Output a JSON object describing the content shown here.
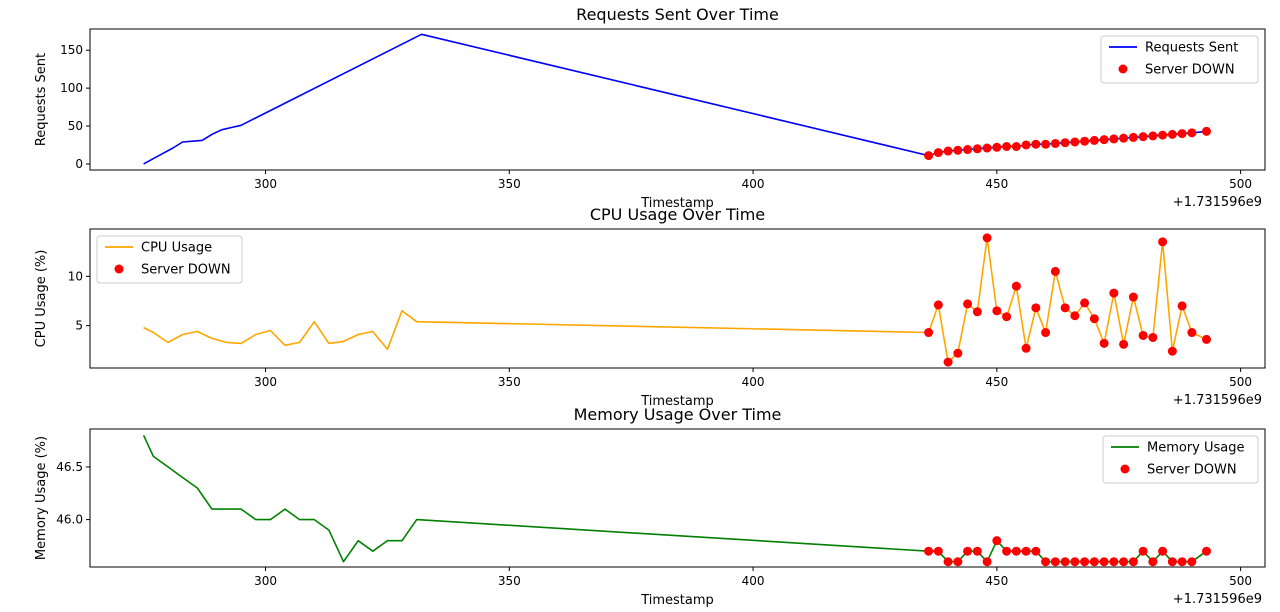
{
  "chart_data": [
    {
      "type": "line",
      "title": "Requests Sent Over Time",
      "xlabel": "Timestamp",
      "ylabel": "Requests Sent",
      "x_offset_label": "+1.731596e9",
      "xlim": [
        264,
        505
      ],
      "ylim": [
        -8,
        178
      ],
      "x_ticks": [
        300,
        350,
        400,
        450,
        500
      ],
      "y_ticks": [
        0,
        50,
        100,
        150
      ],
      "legend_position": "top-right",
      "line_color": "#0000ff",
      "marker_color": "#ff0000",
      "line_series": {
        "name": "Requests Sent",
        "x": [
          275,
          277,
          279,
          281,
          283,
          285,
          287,
          289,
          291,
          293,
          295,
          332,
          436,
          438,
          440,
          442,
          444,
          446,
          448,
          450,
          452,
          454,
          456,
          458,
          460,
          462,
          464,
          466,
          468,
          470,
          472,
          474,
          476,
          478,
          480,
          482,
          484,
          486,
          488,
          490,
          493
        ],
        "y": [
          0,
          7,
          14,
          21,
          29,
          30,
          31,
          39,
          45,
          48,
          51,
          171,
          11,
          15,
          17,
          18,
          19,
          20,
          21,
          22,
          23,
          23,
          25,
          26,
          26,
          27,
          28,
          29,
          30,
          31,
          32,
          33,
          34,
          35,
          36,
          37,
          38,
          39,
          40,
          41,
          43
        ]
      },
      "marker_series": {
        "name": "Server DOWN",
        "x": [
          436,
          438,
          440,
          442,
          444,
          446,
          448,
          450,
          452,
          454,
          456,
          458,
          460,
          462,
          464,
          466,
          468,
          470,
          472,
          474,
          476,
          478,
          480,
          482,
          484,
          486,
          488,
          490,
          493
        ],
        "y": [
          11,
          15,
          17,
          18,
          19,
          20,
          21,
          22,
          23,
          23,
          25,
          26,
          26,
          27,
          28,
          29,
          30,
          31,
          32,
          33,
          34,
          35,
          36,
          37,
          38,
          39,
          40,
          41,
          43
        ]
      }
    },
    {
      "type": "line",
      "title": "CPU Usage Over Time",
      "xlabel": "Timestamp",
      "ylabel": "CPU Usage (%)",
      "x_offset_label": "+1.731596e9",
      "xlim": [
        264,
        505
      ],
      "ylim": [
        0.7,
        14.8
      ],
      "x_ticks": [
        300,
        350,
        400,
        450,
        500
      ],
      "y_ticks": [
        5,
        10
      ],
      "legend_position": "top-left",
      "line_color": "#ffa500",
      "marker_color": "#ff0000",
      "line_series": {
        "name": "CPU Usage",
        "x": [
          275,
          277,
          280,
          283,
          286,
          289,
          292,
          295,
          298,
          301,
          304,
          307,
          310,
          313,
          316,
          319,
          322,
          325,
          328,
          331,
          436,
          438,
          440,
          442,
          444,
          446,
          448,
          450,
          452,
          454,
          456,
          458,
          460,
          462,
          464,
          466,
          468,
          470,
          472,
          474,
          476,
          478,
          480,
          482,
          484,
          486,
          488,
          490,
          493
        ],
        "y": [
          4.8,
          4.3,
          3.3,
          4.1,
          4.4,
          3.7,
          3.3,
          3.2,
          4.1,
          4.5,
          3.0,
          3.3,
          5.4,
          3.2,
          3.4,
          4.1,
          4.4,
          2.6,
          6.5,
          5.4,
          4.3,
          7.1,
          1.3,
          2.2,
          7.2,
          6.4,
          13.9,
          6.5,
          5.9,
          9.0,
          2.7,
          6.8,
          4.3,
          10.5,
          6.8,
          6.0,
          7.3,
          5.7,
          3.2,
          8.3,
          3.1,
          7.9,
          4.0,
          3.8,
          13.5,
          2.4,
          7.0,
          4.3,
          3.6
        ]
      },
      "marker_series": {
        "name": "Server DOWN",
        "x": [
          436,
          438,
          440,
          442,
          444,
          446,
          448,
          450,
          452,
          454,
          456,
          458,
          460,
          462,
          464,
          466,
          468,
          470,
          472,
          474,
          476,
          478,
          480,
          482,
          484,
          486,
          488,
          490,
          493
        ],
        "y": [
          4.3,
          7.1,
          1.3,
          2.2,
          7.2,
          6.4,
          13.9,
          6.5,
          5.9,
          9.0,
          2.7,
          6.8,
          4.3,
          10.5,
          6.8,
          6.0,
          7.3,
          5.7,
          3.2,
          8.3,
          3.1,
          7.9,
          4.0,
          3.8,
          13.5,
          2.4,
          7.0,
          4.3,
          3.6
        ]
      }
    },
    {
      "type": "line",
      "title": "Memory Usage Over Time",
      "xlabel": "Timestamp",
      "ylabel": "Memory Usage (%)",
      "x_offset_label": "+1.731596e9",
      "xlim": [
        264,
        505
      ],
      "ylim": [
        45.55,
        46.86
      ],
      "x_ticks": [
        300,
        350,
        400,
        450,
        500
      ],
      "y_ticks": [
        46.0,
        46.5
      ],
      "y_tick_labels": [
        "46.0",
        "46.5"
      ],
      "legend_position": "top-right",
      "line_color": "#008000",
      "marker_color": "#ff0000",
      "line_series": {
        "name": "Memory Usage",
        "x": [
          275,
          277,
          280,
          283,
          286,
          289,
          292,
          295,
          298,
          301,
          304,
          307,
          310,
          313,
          316,
          319,
          322,
          325,
          328,
          331,
          436,
          438,
          440,
          442,
          444,
          446,
          448,
          450,
          452,
          454,
          456,
          458,
          460,
          462,
          464,
          466,
          468,
          470,
          472,
          474,
          476,
          478,
          480,
          482,
          484,
          486,
          488,
          490,
          493
        ],
        "y": [
          46.8,
          46.6,
          46.5,
          46.4,
          46.3,
          46.1,
          46.1,
          46.1,
          46.0,
          46.0,
          46.1,
          46.0,
          46.0,
          45.9,
          45.6,
          45.8,
          45.7,
          45.8,
          45.8,
          46.0,
          45.7,
          45.7,
          45.6,
          45.6,
          45.7,
          45.7,
          45.6,
          45.8,
          45.7,
          45.7,
          45.7,
          45.7,
          45.6,
          45.6,
          45.6,
          45.6,
          45.6,
          45.6,
          45.6,
          45.6,
          45.6,
          45.6,
          45.7,
          45.6,
          45.7,
          45.6,
          45.6,
          45.6,
          45.7
        ]
      },
      "marker_series": {
        "name": "Server DOWN",
        "x": [
          436,
          438,
          440,
          442,
          444,
          446,
          448,
          450,
          452,
          454,
          456,
          458,
          460,
          462,
          464,
          466,
          468,
          470,
          472,
          474,
          476,
          478,
          480,
          482,
          484,
          486,
          488,
          490,
          493
        ],
        "y": [
          45.7,
          45.7,
          45.6,
          45.6,
          45.7,
          45.7,
          45.6,
          45.8,
          45.7,
          45.7,
          45.7,
          45.7,
          45.6,
          45.6,
          45.6,
          45.6,
          45.6,
          45.6,
          45.6,
          45.6,
          45.6,
          45.6,
          45.7,
          45.6,
          45.7,
          45.6,
          45.6,
          45.6,
          45.7
        ]
      }
    }
  ]
}
